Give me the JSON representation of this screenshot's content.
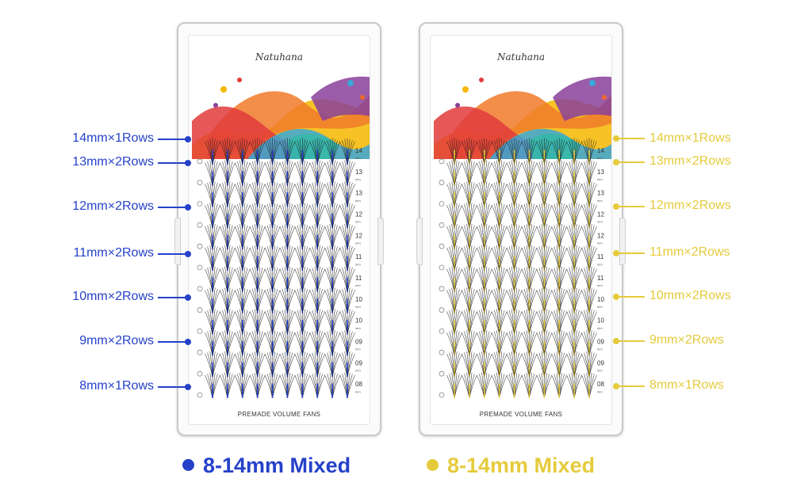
{
  "colors": {
    "blue": "#2541c9",
    "gold": "#e5cb3c",
    "lash": "#1a1a1a"
  },
  "brand": "Natuhana",
  "tray_footer": "PREMADE VOLUME FANS",
  "tray_length_marks": [
    "14",
    "13",
    "13",
    "12",
    "12",
    "11",
    "11",
    "10",
    "10",
    "09",
    "09",
    "08"
  ],
  "left_labels": [
    "14mm×1Rows",
    "13mm×2Rows",
    "12mm×2Rows",
    "11mm×2Rows",
    "10mm×2Rows",
    "9mm×2Rows",
    "8mm×1Rows"
  ],
  "right_labels": [
    "14mm×1Rows",
    "13mm×2Rows",
    "12mm×2Rows",
    "11mm×2Rows",
    "10mm×2Rows",
    "9mm×2Rows",
    "8mm×1Rows"
  ],
  "legend": {
    "blue_text": "8-14mm Mixed",
    "gold_text": "8-14mm Mixed"
  }
}
